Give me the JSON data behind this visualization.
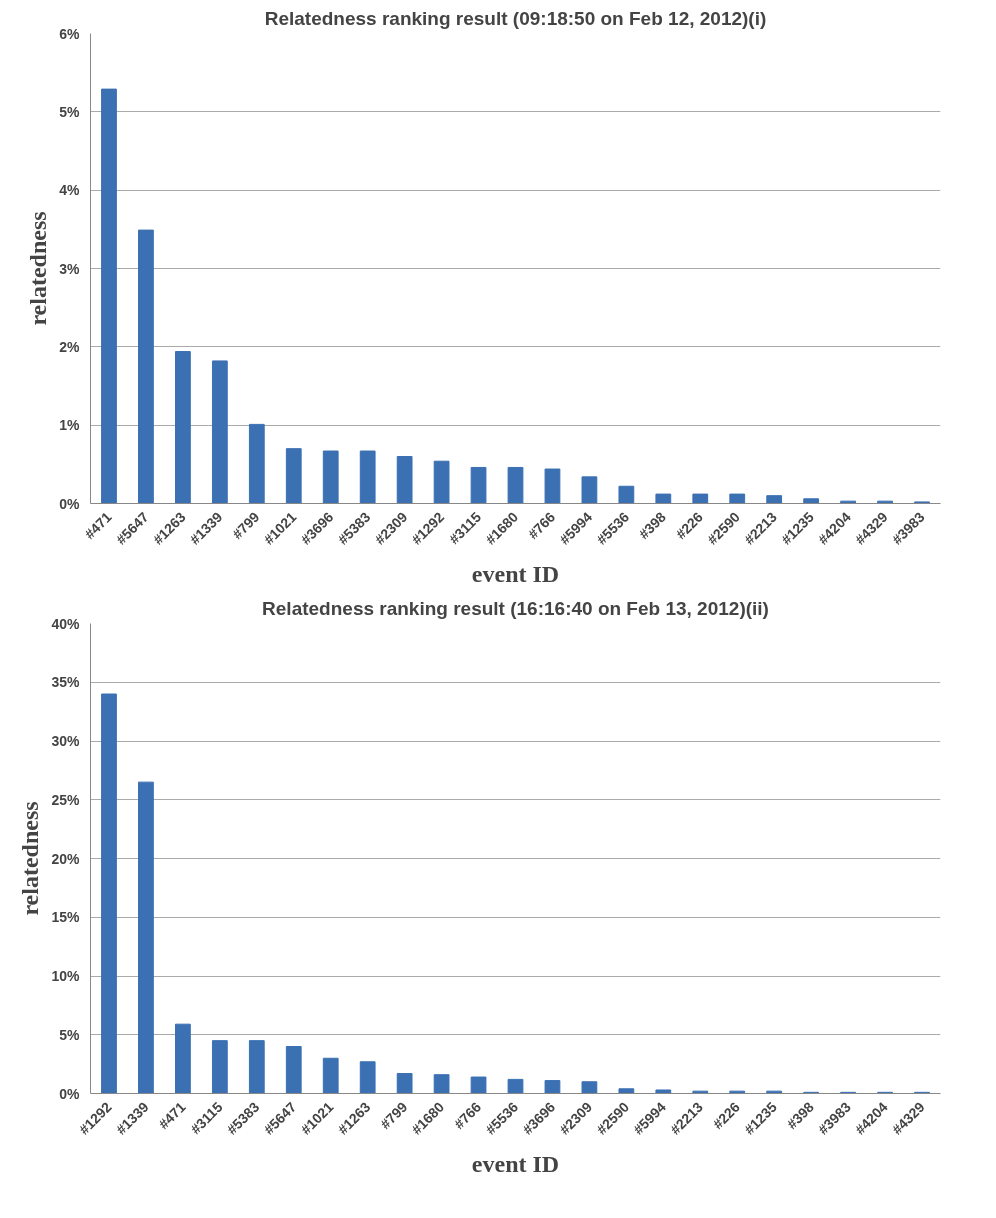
{
  "chart_data": [
    {
      "type": "bar",
      "title": "Relatedness ranking result (09:18:50 on Feb 12, 2012)(i)",
      "xlabel": "event ID",
      "ylabel": "relatedness",
      "categories": [
        "#471",
        "#5647",
        "#1263",
        "#1339",
        "#799",
        "#1021",
        "#3696",
        "#5383",
        "#2309",
        "#1292",
        "#3115",
        "#1680",
        "#766",
        "#5994",
        "#5536",
        "#398",
        "#226",
        "#2590",
        "#2213",
        "#1235",
        "#4204",
        "#4329",
        "#3983"
      ],
      "series": [
        {
          "color": "#3b70b3",
          "values": [
            5.29,
            3.49,
            1.94,
            1.82,
            1.01,
            0.7,
            0.67,
            0.67,
            0.6,
            0.54,
            0.46,
            0.46,
            0.44,
            0.34,
            0.22,
            0.12,
            0.12,
            0.12,
            0.1,
            0.06,
            0.03,
            0.03,
            0.02
          ]
        }
      ],
      "ylim": [
        0,
        6
      ],
      "yticks": [
        {
          "value": 0,
          "label": "0%"
        },
        {
          "value": 1,
          "label": "1%"
        },
        {
          "value": 2,
          "label": "2%"
        },
        {
          "value": 3,
          "label": "3%"
        },
        {
          "value": 4,
          "label": "4%"
        },
        {
          "value": 5,
          "label": "5%"
        },
        {
          "value": 6,
          "label": "6%"
        }
      ],
      "grid": "y"
    },
    {
      "type": "bar",
      "title": "Relatedness ranking result (16:16:40 on Feb 13, 2012)(ii)",
      "xlabel": "event ID",
      "ylabel": "relatedness",
      "categories": [
        "#1292",
        "#1339",
        "#471",
        "#3115",
        "#5383",
        "#5647",
        "#1021",
        "#1263",
        "#799",
        "#1680",
        "#766",
        "#5536",
        "#3696",
        "#2309",
        "#2590",
        "#5994",
        "#2213",
        "#226",
        "#1235",
        "#398",
        "#3983",
        "#4204",
        "#4329"
      ],
      "series": [
        {
          "color": "#3b70b3",
          "values": [
            34.0,
            26.5,
            5.9,
            4.5,
            4.5,
            4.0,
            3.0,
            2.7,
            1.7,
            1.6,
            1.4,
            1.2,
            1.1,
            1.0,
            0.4,
            0.3,
            0.2,
            0.2,
            0.2,
            0.1,
            0.1,
            0.1,
            0.1
          ]
        }
      ],
      "ylim": [
        0,
        40
      ],
      "yticks": [
        {
          "value": 0,
          "label": "0%"
        },
        {
          "value": 5,
          "label": "5%"
        },
        {
          "value": 10,
          "label": "10%"
        },
        {
          "value": 15,
          "label": "15%"
        },
        {
          "value": 20,
          "label": "20%"
        },
        {
          "value": 25,
          "label": "25%"
        },
        {
          "value": 30,
          "label": "30%"
        },
        {
          "value": 35,
          "label": "35%"
        },
        {
          "value": 40,
          "label": "40%"
        }
      ],
      "grid": "y"
    }
  ]
}
